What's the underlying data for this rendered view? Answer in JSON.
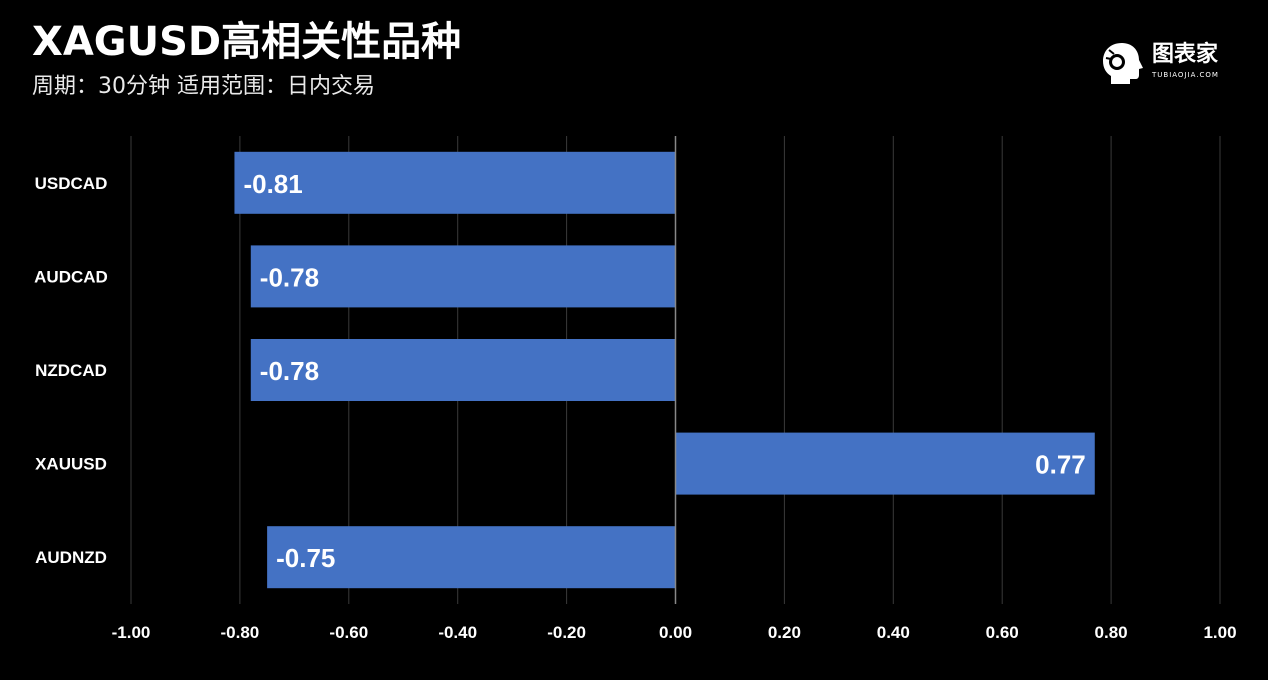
{
  "header": {
    "title": "XAGUSD高相关性品种",
    "subtitle": "周期：30分钟  适用范围：日内交易"
  },
  "logo": {
    "text": "图表家",
    "subtext": "TUBIAOJIA.COM",
    "icon": "head-profile-icon"
  },
  "colors": {
    "background": "#000000",
    "bar": "#4472c4",
    "grid": "#3a3a3a",
    "axis": "#888888"
  },
  "chart_data": {
    "type": "bar",
    "orientation": "horizontal",
    "categories": [
      "USDCAD",
      "AUDCAD",
      "NZDCAD",
      "XAUUSD",
      "AUDNZD"
    ],
    "values": [
      -0.81,
      -0.78,
      -0.78,
      0.77,
      -0.75
    ],
    "value_labels": [
      "-0.81",
      "-0.78",
      "-0.78",
      "0.77",
      "-0.75"
    ],
    "xlim": [
      -1.0,
      1.0
    ],
    "xticks": [
      "-1.00",
      "-0.80",
      "-0.60",
      "-0.40",
      "-0.20",
      "0.00",
      "0.20",
      "0.40",
      "0.60",
      "0.80",
      "1.00"
    ],
    "xtick_values": [
      -1.0,
      -0.8,
      -0.6,
      -0.4,
      -0.2,
      0.0,
      0.2,
      0.4,
      0.6,
      0.8,
      1.0
    ],
    "grid": true,
    "legend": "none"
  }
}
